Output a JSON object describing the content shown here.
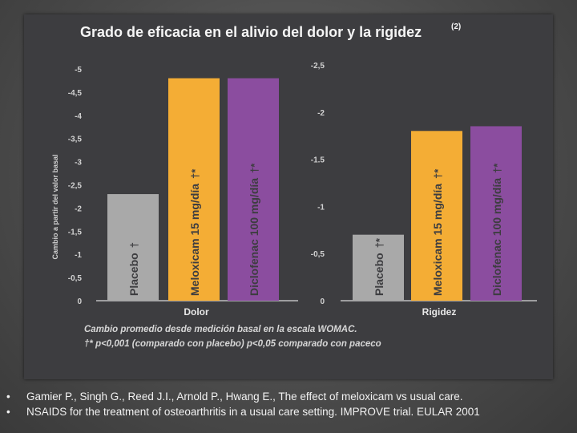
{
  "chart_data": {
    "type": "bar",
    "title": "Grado de eficacia en el alivio del dolor y la rigidez",
    "title_superscript": "(2)",
    "ylabel": "Cambio a partir del valor basal",
    "panels": [
      {
        "group_label": "Dolor",
        "ylim": [
          0,
          -5
        ],
        "ticks": [
          "-5",
          "-4,5",
          "-4",
          "-3,5",
          "-3",
          "-2,5",
          "-2",
          "-1,5",
          "-1",
          "-0,5",
          "0"
        ],
        "tick_values": [
          -5,
          -4.5,
          -4,
          -3.5,
          -3,
          -2.5,
          -2,
          -1.5,
          -1,
          -0.5,
          0
        ],
        "bars": [
          {
            "category": "Placebo",
            "marker": "†",
            "value": -2.3,
            "color": "#a9a9a9"
          },
          {
            "category": "Meloxicam 15 mg/día",
            "marker": "†*",
            "value": -4.8,
            "color": "#f4ad35"
          },
          {
            "category": "Diclofenac 100 mg/día",
            "marker": "†*",
            "value": -4.8,
            "color": "#8b4d9f"
          }
        ]
      },
      {
        "group_label": "Rigidez",
        "ylim": [
          0,
          -2.5
        ],
        "ticks": [
          "-2,5",
          "-2",
          "-1.5",
          "-1",
          "-0,5",
          "0"
        ],
        "tick_values": [
          -2.5,
          -2,
          -1.5,
          -1,
          -0.5,
          0
        ],
        "bars": [
          {
            "category": "Placebo",
            "marker": "†*",
            "value": -0.7,
            "color": "#a9a9a9"
          },
          {
            "category": "Meloxicam 15 mg/día",
            "marker": "†*",
            "value": -1.8,
            "color": "#f4ad35"
          },
          {
            "category": "Diclofenac 100 mg/día",
            "marker": "†*",
            "value": -1.85,
            "color": "#8b4d9f"
          }
        ]
      }
    ],
    "footnotes": [
      "Cambio promedio desde medición basal en la escala WOMAC.",
      "†* p<0,001 (comparado con placebo) p<0,05 comparado con paceco"
    ],
    "grid": false,
    "legend": "none"
  },
  "references": [
    {
      "bullet": "•",
      "text": "Gamier P., Singh G., Reed J.I., Arnold P., Hwang  E., The effect of meloxicam vs usual care."
    },
    {
      "bullet": "•",
      "text": "NSAIDS for the treatment of osteoarthritis in a usual care setting. IMPROVE  trial.  EULAR 2001"
    }
  ]
}
